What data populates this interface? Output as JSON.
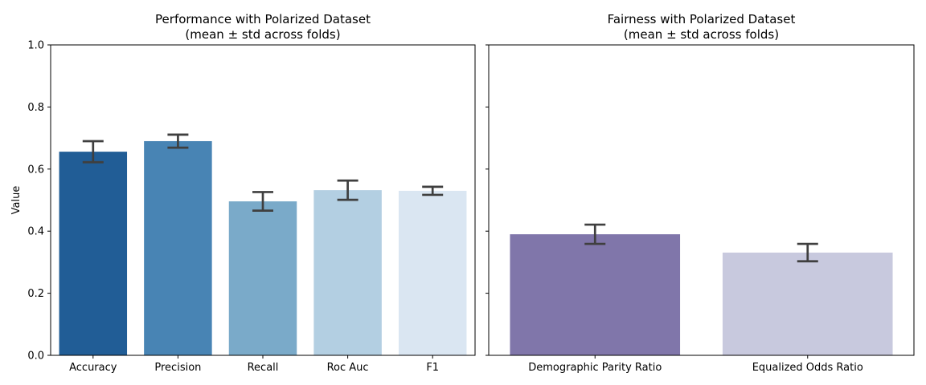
{
  "chart_data": [
    {
      "type": "bar",
      "title": "Performance with Polarized Dataset",
      "subtitle": "(mean ± std across folds)",
      "y_label": "Value",
      "categories": [
        "Accuracy",
        "Precision",
        "Recall",
        "Roc Auc",
        "F1"
      ],
      "values": [
        0.656,
        0.69,
        0.496,
        0.532,
        0.53
      ],
      "errors": [
        0.034,
        0.021,
        0.03,
        0.031,
        0.013
      ],
      "colors": [
        "#215d96",
        "#4884b4",
        "#7aaac9",
        "#b3cfe2",
        "#dae6f2"
      ],
      "ylim": [
        0,
        1.0
      ],
      "yticks": [
        {
          "value": 0,
          "label": "0.0"
        },
        0.2,
        0.4,
        0.6,
        0.8,
        {
          "value": 1.0,
          "label": "1.0"
        }
      ]
    },
    {
      "type": "bar",
      "title": "Fairness with Polarized Dataset",
      "subtitle": "(mean ± std across folds)",
      "categories": [
        "Demographic Parity Ratio",
        "Equalized Odds Ratio"
      ],
      "values": [
        0.39,
        0.331
      ],
      "errors": [
        0.031,
        0.028
      ],
      "colors": [
        "#8076aa",
        "#c8c9de"
      ],
      "ylim": [
        0,
        1.0
      ],
      "yticks": [
        0,
        0.2,
        0.4,
        0.6,
        0.8,
        1.0
      ]
    }
  ]
}
